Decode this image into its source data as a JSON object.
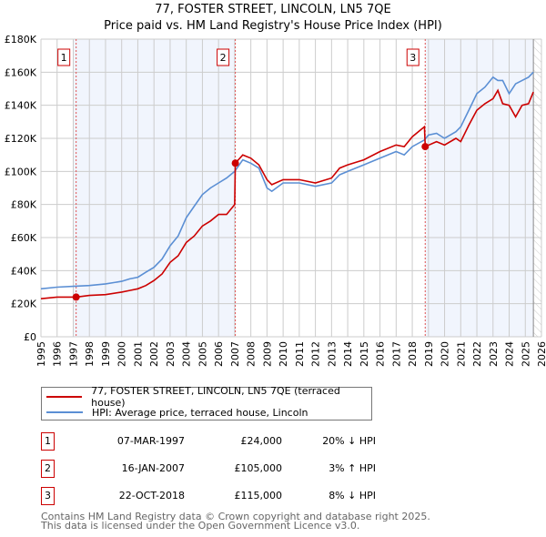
{
  "chart_data": {
    "type": "line",
    "title": "77, FOSTER STREET, LINCOLN, LN5 7QE",
    "subtitle": "Price paid vs. HM Land Registry's House Price Index (HPI)",
    "xlim": [
      1995,
      2026
    ],
    "ylim": [
      0,
      180000
    ],
    "x_ticks": [
      "1995",
      "1996",
      "1997",
      "1998",
      "1999",
      "2000",
      "2001",
      "2002",
      "2003",
      "2004",
      "2005",
      "2006",
      "2007",
      "2008",
      "2009",
      "2010",
      "2011",
      "2012",
      "2013",
      "2014",
      "2015",
      "2016",
      "2017",
      "2018",
      "2019",
      "2020",
      "2021",
      "2022",
      "2023",
      "2024",
      "2025",
      "2026"
    ],
    "y_ticks": [
      {
        "v": 0,
        "label": "£0"
      },
      {
        "v": 20000,
        "label": "£20K"
      },
      {
        "v": 40000,
        "label": "£40K"
      },
      {
        "v": 60000,
        "label": "£60K"
      },
      {
        "v": 80000,
        "label": "£80K"
      },
      {
        "v": 100000,
        "label": "£100K"
      },
      {
        "v": 120000,
        "label": "£120K"
      },
      {
        "v": 140000,
        "label": "£140K"
      },
      {
        "v": 160000,
        "label": "£160K"
      },
      {
        "v": 180000,
        "label": "£180K"
      }
    ],
    "grid": true,
    "shaded_ranges": [
      [
        1997.0,
        2007.04
      ],
      [
        2018.8,
        2025.5
      ]
    ],
    "hatched_from": 2025.5,
    "series": [
      {
        "name": "77, FOSTER STREET, LINCOLN, LN5 7QE (terraced house)",
        "color": "#cc0000",
        "x": [
          1995,
          1996,
          1997.18,
          1998,
          1999,
          2000,
          2000.5,
          2001,
          2001.5,
          2002,
          2002.5,
          2003,
          2003.5,
          2004,
          2004.5,
          2005,
          2005.5,
          2006,
          2006.5,
          2007.0,
          2007.04,
          2007.5,
          2008,
          2008.5,
          2009,
          2009.3,
          2010,
          2011,
          2012,
          2013,
          2013.5,
          2014,
          2015,
          2016,
          2017,
          2017.5,
          2018,
          2018.75,
          2018.8,
          2019.5,
          2020,
          2020.7,
          2021,
          2021.5,
          2022,
          2022.5,
          2023,
          2023.3,
          2023.6,
          2024,
          2024.4,
          2024.8,
          2025.2,
          2025.5
        ],
        "y": [
          23000,
          24000,
          24000,
          25000,
          25500,
          27000,
          28000,
          29000,
          31000,
          34000,
          38000,
          45000,
          49000,
          57000,
          61000,
          67000,
          70000,
          74000,
          74000,
          80000,
          105000,
          110000,
          108000,
          104000,
          95000,
          92000,
          95000,
          95000,
          93000,
          96000,
          102000,
          104000,
          107000,
          112000,
          116000,
          115000,
          121000,
          127000,
          115000,
          118000,
          116000,
          120000,
          118000,
          128000,
          137000,
          141000,
          144000,
          149000,
          141000,
          140000,
          133000,
          140000,
          141000,
          148000
        ]
      },
      {
        "name": "HPI: Average price, terraced house, Lincoln",
        "color": "#5b8fd4",
        "x": [
          1995,
          1996,
          1997,
          1998,
          1999,
          2000,
          2000.5,
          2001,
          2001.5,
          2002,
          2002.5,
          2003,
          2003.5,
          2004,
          2004.5,
          2005,
          2005.5,
          2006,
          2006.5,
          2007,
          2007.5,
          2008,
          2008.5,
          2009,
          2009.3,
          2010,
          2011,
          2012,
          2013,
          2013.5,
          2014,
          2015,
          2016,
          2017,
          2017.5,
          2018,
          2018.75,
          2019,
          2019.5,
          2020,
          2020.7,
          2021,
          2021.5,
          2022,
          2022.5,
          2023,
          2023.3,
          2023.6,
          2024,
          2024.4,
          2024.8,
          2025.2,
          2025.5
        ],
        "y": [
          29000,
          30000,
          30500,
          31000,
          32000,
          33500,
          35000,
          36000,
          39000,
          42000,
          47000,
          55000,
          61000,
          72000,
          79000,
          86000,
          90000,
          93000,
          96000,
          100000,
          107000,
          105000,
          102000,
          90000,
          88000,
          93000,
          93000,
          91000,
          93000,
          98000,
          100000,
          104000,
          108000,
          112000,
          110000,
          115000,
          119000,
          122000,
          123000,
          120000,
          124000,
          127000,
          137000,
          147000,
          151000,
          157000,
          155000,
          155000,
          147000,
          153000,
          155000,
          157000,
          160000
        ]
      }
    ],
    "sales": [
      {
        "label": "1",
        "x": 1997.18,
        "y": 24000,
        "date": "07-MAR-1997",
        "price": "£24,000",
        "hpi": "20% ↓ HPI"
      },
      {
        "label": "2",
        "x": 2007.04,
        "y": 105000,
        "date": "16-JAN-2007",
        "price": "£105,000",
        "hpi": "3% ↑ HPI"
      },
      {
        "label": "3",
        "x": 2018.8,
        "y": 115000,
        "date": "22-OCT-2018",
        "price": "£115,000",
        "hpi": "8% ↓ HPI"
      }
    ]
  },
  "legend": {
    "red_label": "77, FOSTER STREET, LINCOLN, LN5 7QE (terraced house)",
    "blue_label": "HPI: Average price, terraced house, Lincoln"
  },
  "footer": {
    "line1": "Contains HM Land Registry data © Crown copyright and database right 2025.",
    "line2": "This data is licensed under the Open Government Licence v3.0."
  }
}
